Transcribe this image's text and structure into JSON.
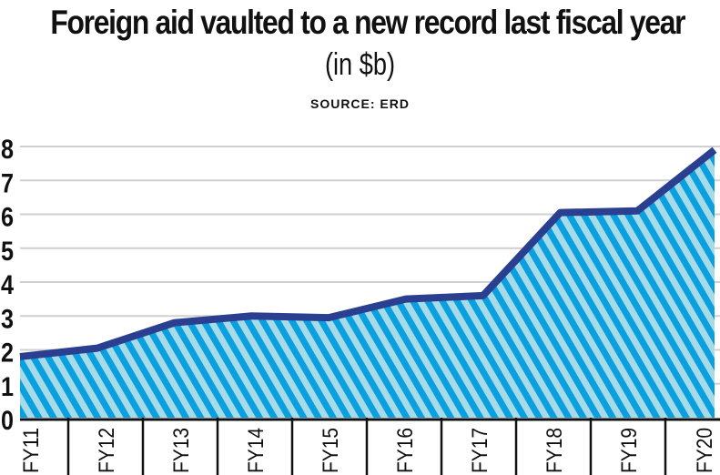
{
  "chart_data": {
    "type": "area",
    "title": "Foreign aid vaulted to a new record last fiscal year",
    "subtitle": "(in $b)",
    "source": "SOURCE: ERD",
    "categories": [
      "FY11",
      "FY12",
      "FY13",
      "FY14",
      "FY15",
      "FY16",
      "FY17",
      "FY18",
      "FY19",
      "FY20"
    ],
    "values": [
      1.8,
      2.05,
      2.8,
      3.0,
      2.95,
      3.5,
      3.6,
      6.05,
      6.1,
      7.9
    ],
    "yticks": [
      "0",
      "1",
      "2",
      "3",
      "4",
      "5",
      "6",
      "7",
      "8"
    ],
    "ylim": [
      0,
      8
    ],
    "xlabel": "",
    "ylabel": "",
    "grid": true,
    "colors": {
      "line": "#2b3f91",
      "stripe_dark": "#0aa0e0",
      "stripe_light": "#a8dbe8",
      "grid": "#d0d0d0"
    }
  }
}
